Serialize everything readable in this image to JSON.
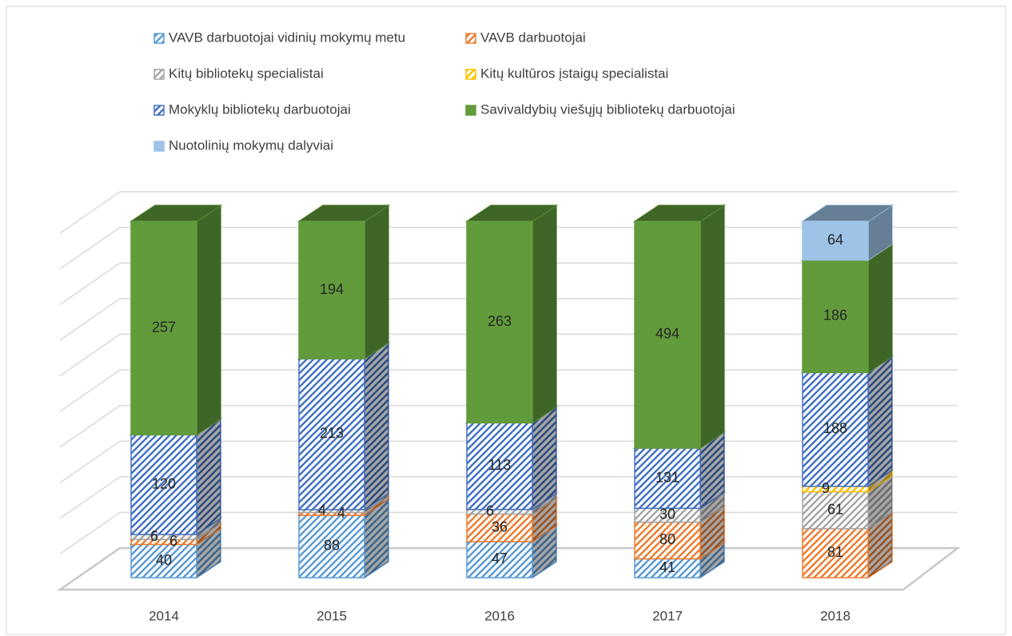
{
  "chart_data": {
    "type": "bar3d",
    "stacking": "percent",
    "categories": [
      "2014",
      "2015",
      "2016",
      "2017",
      "2018"
    ],
    "series": [
      {
        "name": "VAVB darbuotojai vidinių mokymų metu",
        "color": "#5b9bd5",
        "hatch": true,
        "values": [
          40,
          88,
          47,
          41,
          null
        ]
      },
      {
        "name": "VAVB darbuotojai",
        "color": "#ed7d31",
        "hatch": true,
        "values": [
          6,
          4,
          36,
          80,
          81
        ]
      },
      {
        "name": "Kitų bibliotekų specialistai",
        "color": "#a5a5a5",
        "hatch": true,
        "values": [
          6,
          4,
          6,
          30,
          61
        ]
      },
      {
        "name": "Kitų kultūros įstaigų specialistai",
        "color": "#ffc000",
        "hatch": true,
        "values": [
          null,
          null,
          null,
          null,
          9
        ]
      },
      {
        "name": "Mokyklų bibliotekų darbuotojai",
        "color": "#4472c4",
        "hatch": true,
        "values": [
          120,
          213,
          113,
          131,
          188
        ]
      },
      {
        "name": "Savivaldybių viešųjų bibliotekų darbuotojai",
        "color": "#629b3c",
        "hatch": false,
        "values": [
          257,
          194,
          263,
          494,
          186
        ]
      },
      {
        "name": "Nuotolinių mokymų dalyviai",
        "color": "#9dc3e6",
        "hatch": false,
        "values": [
          null,
          null,
          null,
          null,
          64
        ]
      }
    ],
    "ylim": [
      0,
      100
    ],
    "yticks": [
      0,
      10,
      20,
      30,
      40,
      50,
      60,
      70,
      80,
      90,
      100
    ],
    "grid": true,
    "legend": "top"
  }
}
